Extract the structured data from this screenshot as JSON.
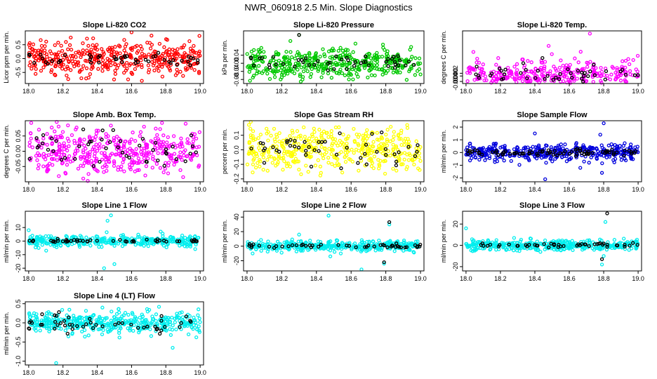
{
  "page": {
    "title": "NWR_060918  2.5 Min. Slope Diagnostics"
  },
  "chart_data": [
    {
      "type": "scatter",
      "title": "Slope Li-820 CO2",
      "ylabel": "Licor ppm per min.",
      "xlim": [
        17.98,
        19.02
      ],
      "ylim": [
        -0.9,
        1.0
      ],
      "xticks": [
        18.0,
        18.2,
        18.4,
        18.6,
        18.8,
        19.0
      ],
      "xtick_labels": [
        "18.0",
        "18.2",
        "18.4",
        "18.6",
        "18.8",
        "19.0"
      ],
      "yticks": [
        -0.5,
        0.0,
        0.5
      ],
      "ytick_labels": [
        "-0.5",
        "0.0",
        "0.5"
      ],
      "series": [
        {
          "color": "#ff0000",
          "n": 420,
          "spread": 0.28,
          "spikes": [
            [
              18.6,
              0.95
            ],
            [
              18.58,
              -0.75
            ],
            [
              18.66,
              -0.8
            ],
            [
              18.04,
              -0.55
            ],
            [
              18.78,
              -0.65
            ]
          ]
        },
        {
          "color": "#000000",
          "n": 48,
          "spread": 0.15
        }
      ]
    },
    {
      "type": "scatter",
      "title": "Slope Li-820 Pressure",
      "ylabel": "kPa per min.",
      "xlim": [
        17.98,
        19.02
      ],
      "ylim": [
        -0.1,
        0.16
      ],
      "xticks": [
        18.0,
        18.2,
        18.4,
        18.6,
        18.8,
        19.0
      ],
      "xtick_labels": [
        "18.0",
        "18.2",
        "18.4",
        "18.6",
        "18.8",
        "19.0"
      ],
      "yticks": [
        -0.08,
        -0.04,
        0.0,
        0.04
      ],
      "ytick_labels": [
        "-0.08",
        "-0.04",
        "0.00",
        "0.04"
      ],
      "series": [
        {
          "color": "#00c800",
          "n": 420,
          "spread": 0.035,
          "spikes": [
            [
              18.3,
              0.14
            ],
            [
              18.25,
              0.11
            ],
            [
              18.32,
              -0.08
            ],
            [
              19.0,
              -0.055
            ],
            [
              18.2,
              -0.07
            ]
          ]
        },
        {
          "color": "#000000",
          "n": 48,
          "spread": 0.018,
          "spikes": [
            [
              18.3,
              0.14
            ]
          ]
        }
      ]
    },
    {
      "type": "scatter",
      "title": "Slope Li-820 Temp.",
      "ylabel": "degrees C per min.",
      "xlim": [
        17.98,
        19.02
      ],
      "ylim": [
        -0.0055,
        0.033
      ],
      "xticks": [
        18.0,
        18.2,
        18.4,
        18.6,
        18.8,
        19.0
      ],
      "xtick_labels": [
        "18.0",
        "18.2",
        "18.4",
        "18.6",
        "18.8",
        "19.0"
      ],
      "yticks": [
        -0.004,
        0.0,
        0.002
      ],
      "ytick_labels": [
        "-0.004",
        "0.000",
        "0.002"
      ],
      "series": [
        {
          "color": "#ff00ff",
          "n": 380,
          "spread": 0.006,
          "spikes": [
            [
              18.72,
              0.031
            ],
            [
              18.48,
              0.022
            ],
            [
              18.36,
              -0.004
            ],
            [
              18.6,
              -0.004
            ]
          ]
        },
        {
          "color": "#000000",
          "n": 45,
          "spread": 0.004
        }
      ]
    },
    {
      "type": "scatter",
      "title": "Slope Amb. Box Temp.",
      "ylabel": "degrees C per min.",
      "xlim": [
        17.98,
        19.02
      ],
      "ylim": [
        -0.1,
        0.1
      ],
      "xticks": [
        18.0,
        18.2,
        18.4,
        18.6,
        18.8,
        19.0
      ],
      "xtick_labels": [
        "18.0",
        "18.2",
        "18.4",
        "18.6",
        "18.8",
        "19.0"
      ],
      "yticks": [
        -0.05,
        0.0,
        0.05
      ],
      "ytick_labels": [
        "-0.05",
        "0.00",
        "0.05"
      ],
      "series": [
        {
          "color": "#ff00ff",
          "n": 420,
          "spread": 0.04
        },
        {
          "color": "#000000",
          "n": 48,
          "spread": 0.03
        }
      ]
    },
    {
      "type": "scatter",
      "title": "Slope Gas Stream RH",
      "ylabel": "percent per min.",
      "xlim": [
        17.98,
        19.02
      ],
      "ylim": [
        -0.22,
        0.2
      ],
      "xticks": [
        18.0,
        18.2,
        18.4,
        18.6,
        18.8,
        19.0
      ],
      "xtick_labels": [
        "18.0",
        "18.2",
        "18.4",
        "18.6",
        "18.8",
        "19.0"
      ],
      "yticks": [
        -0.2,
        -0.1,
        0.0,
        0.1
      ],
      "ytick_labels": [
        "-0.2",
        "-0.1",
        "0.0",
        "0.1"
      ],
      "series": [
        {
          "color": "#ffff00",
          "n": 440,
          "spread": 0.075
        },
        {
          "color": "#000000",
          "n": 48,
          "spread": 0.06
        }
      ]
    },
    {
      "type": "scatter",
      "title": "Slope Sample Flow",
      "ylabel": "ml/min per min.",
      "xlim": [
        17.98,
        19.02
      ],
      "ylim": [
        -2.3,
        2.5
      ],
      "xticks": [
        18.0,
        18.2,
        18.4,
        18.6,
        18.8,
        19.0
      ],
      "xtick_labels": [
        "18.0",
        "18.2",
        "18.4",
        "18.6",
        "18.8",
        "19.0"
      ],
      "yticks": [
        -2,
        -1,
        0,
        1,
        2
      ],
      "ytick_labels": [
        "-2",
        "-1",
        "0",
        "1",
        "2"
      ],
      "series": [
        {
          "color": "#0000dd",
          "n": 400,
          "spread": 0.35,
          "spikes": [
            [
              18.8,
              2.3
            ],
            [
              18.79,
              -1.6
            ],
            [
              18.46,
              -2.1
            ],
            [
              18.78,
              1.4
            ],
            [
              18.4,
              1.5
            ]
          ]
        },
        {
          "color": "#000000",
          "n": 80,
          "spread": 0.12
        }
      ]
    },
    {
      "type": "scatter",
      "title": "Slope Line 1 Flow",
      "ylabel": "ml/min per min.",
      "xlim": [
        17.98,
        19.02
      ],
      "ylim": [
        -22,
        22
      ],
      "xticks": [
        18.0,
        18.2,
        18.4,
        18.6,
        18.8,
        19.0
      ],
      "xtick_labels": [
        "18.0",
        "18.2",
        "18.4",
        "18.6",
        "18.8",
        "19.0"
      ],
      "yticks": [
        -20,
        -10,
        0,
        10
      ],
      "ytick_labels": [
        "-20",
        "-10",
        "0",
        "10"
      ],
      "series": [
        {
          "color": "#00eeee",
          "n": 380,
          "spread": 2.0,
          "spikes": [
            [
              18.48,
              19
            ],
            [
              18.46,
              15
            ],
            [
              18.44,
              -20
            ],
            [
              18.5,
              -17
            ],
            [
              18.0,
              8
            ],
            [
              18.77,
              7
            ]
          ]
        },
        {
          "color": "#000000",
          "n": 48,
          "spread": 0.5
        }
      ]
    },
    {
      "type": "scatter",
      "title": "Slope Line 2 Flow",
      "ylabel": "ml/min per min.",
      "xlim": [
        17.98,
        19.02
      ],
      "ylim": [
        -34,
        48
      ],
      "xticks": [
        18.0,
        18.2,
        18.4,
        18.6,
        18.8,
        19.0
      ],
      "xtick_labels": [
        "18.0",
        "18.2",
        "18.4",
        "18.6",
        "18.8",
        "19.0"
      ],
      "yticks": [
        -20,
        0,
        20,
        40
      ],
      "ytick_labels": [
        "-20",
        "0",
        "20",
        "40"
      ],
      "series": [
        {
          "color": "#00eeee",
          "n": 380,
          "spread": 3.5,
          "spikes": [
            [
              18.47,
              42
            ],
            [
              18.48,
              -14
            ],
            [
              18.82,
              30
            ],
            [
              18.79,
              -24
            ],
            [
              18.66,
              -32
            ],
            [
              18.3,
              16
            ]
          ]
        },
        {
          "color": "#000000",
          "n": 48,
          "spread": 1.5,
          "spikes": [
            [
              18.82,
              33
            ],
            [
              18.79,
              -22
            ]
          ]
        }
      ]
    },
    {
      "type": "scatter",
      "title": "Slope Line 3 Flow",
      "ylabel": "ml/min per min.",
      "xlim": [
        17.98,
        19.02
      ],
      "ylim": [
        -24,
        32
      ],
      "xticks": [
        18.0,
        18.2,
        18.4,
        18.6,
        18.8,
        19.0
      ],
      "xtick_labels": [
        "18.0",
        "18.2",
        "18.4",
        "18.6",
        "18.8",
        "19.0"
      ],
      "yticks": [
        -20,
        0,
        20
      ],
      "ytick_labels": [
        "-20",
        "0",
        "20"
      ],
      "series": [
        {
          "color": "#00eeee",
          "n": 380,
          "spread": 2.5,
          "spikes": [
            [
              18.0,
              16
            ],
            [
              18.81,
              22
            ],
            [
              18.79,
              -18
            ],
            [
              18.8,
              -10
            ]
          ]
        },
        {
          "color": "#000000",
          "n": 48,
          "spread": 1.0,
          "spikes": [
            [
              18.82,
              30
            ],
            [
              18.79,
              -13
            ]
          ]
        }
      ]
    },
    {
      "type": "scatter",
      "title": "Slope Line 4 (LT) Flow",
      "ylabel": "ml/min per min.",
      "xlim": [
        17.98,
        19.02
      ],
      "ylim": [
        -1.1,
        0.55
      ],
      "xticks": [
        18.0,
        18.2,
        18.4,
        18.6,
        18.8,
        19.0
      ],
      "xtick_labels": [
        "18.0",
        "18.2",
        "18.4",
        "18.6",
        "18.8",
        "19.0"
      ],
      "yticks": [
        -1.0,
        -0.5,
        0.0,
        0.5
      ],
      "ytick_labels": [
        "-1.0",
        "-0.5",
        "0.0",
        "0.5"
      ],
      "series": [
        {
          "color": "#00eeee",
          "n": 420,
          "spread": 0.14,
          "spikes": [
            [
              18.16,
              -1.05
            ],
            [
              18.84,
              -0.65
            ],
            [
              18.76,
              0.42
            ],
            [
              18.43,
              0.4
            ]
          ]
        },
        {
          "color": "#000000",
          "n": 50,
          "spread": 0.13
        }
      ]
    }
  ]
}
